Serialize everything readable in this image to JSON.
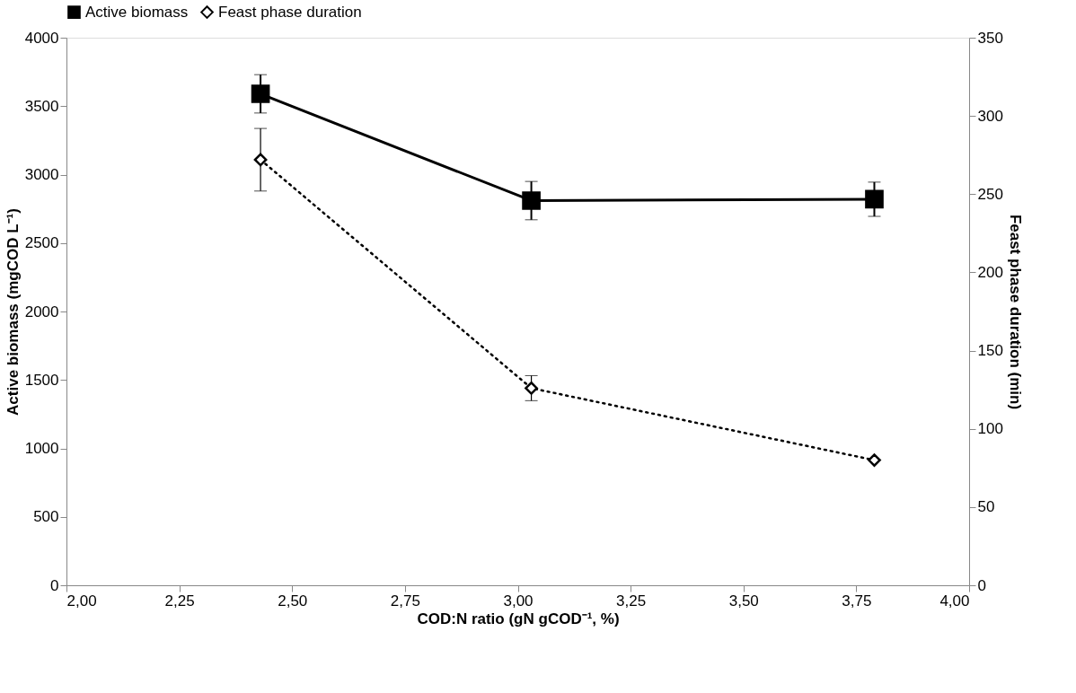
{
  "chart_data": {
    "type": "line",
    "xlabel": "COD:N ratio (gN gCOD⁻¹, %)",
    "ylabel": "Active biomass (mgCOD L⁻¹)",
    "y2label": "Feast phase duration (min)",
    "x": [
      2.43,
      3.03,
      3.79
    ],
    "series": [
      {
        "name": "Active biomass",
        "color": "#000000",
        "values": [
          3590,
          2810,
          2820
        ],
        "errors": [
          140,
          140,
          125
        ],
        "marker": "square",
        "line_style": "solid"
      },
      {
        "name": "Feast phase duration",
        "color": "#000000",
        "values": [
          272,
          126,
          80
        ],
        "errors": [
          20,
          8,
          null
        ],
        "marker": "diamond",
        "line_style": "dotted",
        "axis": "y2"
      }
    ],
    "xlim": [
      2,
      4
    ],
    "xticks": [
      {
        "value": 2,
        "label": "2,00"
      },
      {
        "value": 2.25,
        "label": "2,25"
      },
      {
        "value": 2.5,
        "label": "2,50"
      },
      {
        "value": 2.75,
        "label": "2,75"
      },
      {
        "value": 3,
        "label": "3,00"
      },
      {
        "value": 3.25,
        "label": "3,25"
      },
      {
        "value": 3.5,
        "label": "3,50"
      },
      {
        "value": 3.75,
        "label": "3,75"
      },
      {
        "value": 4,
        "label": "4,00"
      }
    ],
    "ylim": [
      0,
      4000
    ],
    "yticks": [
      0,
      500,
      1000,
      1500,
      2000,
      2500,
      3000,
      3500,
      4000
    ],
    "y2lim": [
      0,
      350
    ],
    "y2ticks": [
      0,
      50,
      100,
      150,
      200,
      250,
      300,
      350
    ],
    "grid": false,
    "legend": "top"
  }
}
